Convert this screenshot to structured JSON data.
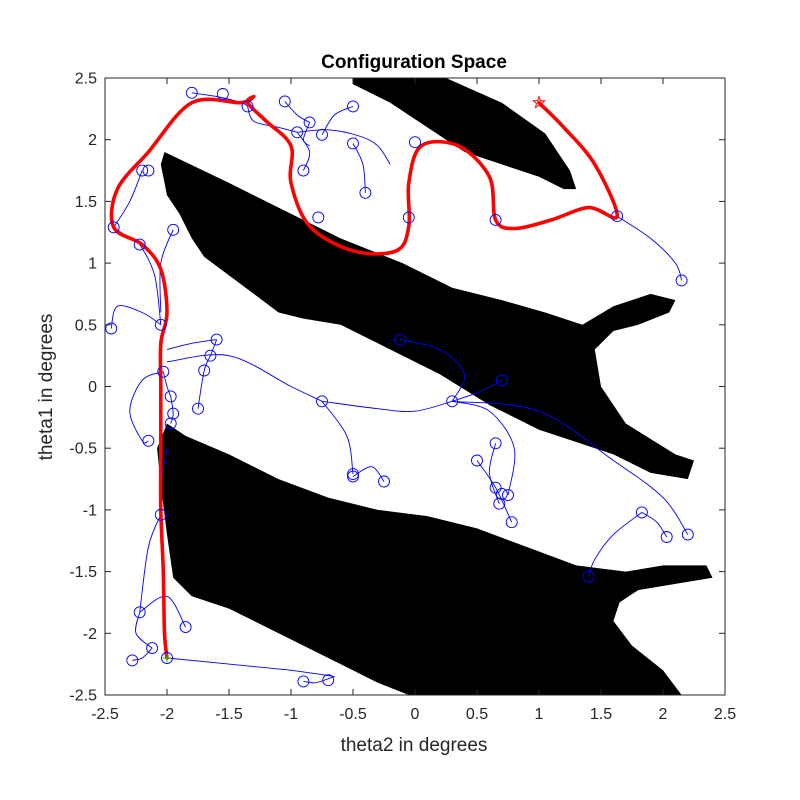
{
  "chart_data": {
    "type": "scatter",
    "title": "Configuration Space",
    "xlabel": "theta2 in degrees",
    "ylabel": "theta1 in degrees",
    "xlim": [
      -2.5,
      2.5
    ],
    "ylim": [
      -2.5,
      2.5
    ],
    "xticks": [
      "-2.5",
      "-2",
      "-1.5",
      "-1",
      "-0.5",
      "0",
      "0.5",
      "1",
      "1.5",
      "2",
      "2.5"
    ],
    "yticks": [
      "-2.5",
      "-2",
      "-1.5",
      "-1",
      "-0.5",
      "0",
      "0.5",
      "1",
      "1.5",
      "2",
      "2.5"
    ],
    "grid": false,
    "colors": {
      "obstacle": "#000000",
      "tree": "#0000ff",
      "path": "#ff0000",
      "goal": "#ff0000",
      "start": "#00cc00"
    },
    "obstacles": [
      {
        "polygon": [
          [
            -0.5,
            2.5
          ],
          [
            0.25,
            2.5
          ],
          [
            0.7,
            2.3
          ],
          [
            1.05,
            2.05
          ],
          [
            1.25,
            1.75
          ],
          [
            1.3,
            1.6
          ],
          [
            1.2,
            1.6
          ],
          [
            1.0,
            1.7
          ],
          [
            0.7,
            1.8
          ],
          [
            0.4,
            1.9
          ],
          [
            0.1,
            2.1
          ],
          [
            -0.2,
            2.3
          ],
          [
            -0.5,
            2.45
          ]
        ]
      },
      {
        "polygon": [
          [
            -2.02,
            1.9
          ],
          [
            -1.5,
            1.65
          ],
          [
            -1.1,
            1.45
          ],
          [
            -0.6,
            1.2
          ],
          [
            -0.1,
            1.0
          ],
          [
            0.3,
            0.8
          ],
          [
            0.7,
            0.7
          ],
          [
            1.05,
            0.6
          ],
          [
            1.35,
            0.5
          ],
          [
            1.6,
            0.65
          ],
          [
            1.9,
            0.75
          ],
          [
            2.1,
            0.7
          ],
          [
            2.05,
            0.6
          ],
          [
            1.8,
            0.5
          ],
          [
            1.6,
            0.45
          ],
          [
            1.45,
            0.3
          ],
          [
            1.5,
            0.0
          ],
          [
            1.7,
            -0.3
          ],
          [
            2.1,
            -0.55
          ],
          [
            2.25,
            -0.6
          ],
          [
            2.2,
            -0.75
          ],
          [
            1.9,
            -0.7
          ],
          [
            1.6,
            -0.55
          ],
          [
            1.3,
            -0.45
          ],
          [
            1.0,
            -0.35
          ],
          [
            0.6,
            -0.15
          ],
          [
            0.2,
            0.1
          ],
          [
            -0.2,
            0.3
          ],
          [
            -0.6,
            0.5
          ],
          [
            -0.9,
            0.55
          ],
          [
            -1.1,
            0.6
          ],
          [
            -1.3,
            0.75
          ],
          [
            -1.5,
            0.9
          ],
          [
            -1.7,
            1.05
          ],
          [
            -1.8,
            1.2
          ],
          [
            -1.9,
            1.4
          ],
          [
            -2.0,
            1.55
          ],
          [
            -2.05,
            1.8
          ]
        ]
      },
      {
        "polygon": [
          [
            -2.0,
            -0.3
          ],
          [
            -1.85,
            -0.4
          ],
          [
            -1.5,
            -0.55
          ],
          [
            -1.1,
            -0.75
          ],
          [
            -0.7,
            -0.9
          ],
          [
            -0.3,
            -1.0
          ],
          [
            0.1,
            -1.05
          ],
          [
            0.5,
            -1.15
          ],
          [
            0.9,
            -1.3
          ],
          [
            1.3,
            -1.45
          ],
          [
            1.7,
            -1.5
          ],
          [
            2.0,
            -1.45
          ],
          [
            2.35,
            -1.45
          ],
          [
            2.4,
            -1.55
          ],
          [
            2.1,
            -1.6
          ],
          [
            1.8,
            -1.65
          ],
          [
            1.65,
            -1.75
          ],
          [
            1.6,
            -1.9
          ],
          [
            1.75,
            -2.1
          ],
          [
            2.0,
            -2.3
          ],
          [
            2.15,
            -2.5
          ],
          [
            -0.05,
            -2.5
          ],
          [
            -0.3,
            -2.4
          ],
          [
            -0.6,
            -2.25
          ],
          [
            -0.9,
            -2.1
          ],
          [
            -1.2,
            -1.95
          ],
          [
            -1.5,
            -1.8
          ],
          [
            -1.8,
            -1.7
          ],
          [
            -1.95,
            -1.55
          ],
          [
            -2.0,
            -1.2
          ],
          [
            -2.05,
            -0.8
          ],
          [
            -2.08,
            -0.5
          ]
        ]
      }
    ],
    "tree_nodes": [
      [
        -1.8,
        2.38
      ],
      [
        -1.55,
        2.37
      ],
      [
        -1.35,
        2.27
      ],
      [
        -1.05,
        2.31
      ],
      [
        -0.85,
        2.14
      ],
      [
        -0.95,
        2.06
      ],
      [
        -0.75,
        2.04
      ],
      [
        -0.5,
        2.27
      ],
      [
        -0.5,
        1.97
      ],
      [
        -0.4,
        1.57
      ],
      [
        -0.9,
        1.75
      ],
      [
        -0.78,
        1.37
      ],
      [
        -0.05,
        1.37
      ],
      [
        0.0,
        1.98
      ],
      [
        0.65,
        1.35
      ],
      [
        1.63,
        1.38
      ],
      [
        2.15,
        0.86
      ],
      [
        -2.43,
        1.29
      ],
      [
        -2.22,
        1.15
      ],
      [
        -2.2,
        1.75
      ],
      [
        -2.15,
        1.75
      ],
      [
        -1.95,
        1.27
      ],
      [
        -2.05,
        0.5
      ],
      [
        -2.45,
        0.47
      ],
      [
        -1.6,
        0.38
      ],
      [
        -1.65,
        0.25
      ],
      [
        -1.7,
        0.13
      ],
      [
        -2.03,
        0.12
      ],
      [
        -1.97,
        -0.08
      ],
      [
        -1.95,
        -0.22
      ],
      [
        -1.97,
        -0.3
      ],
      [
        -1.75,
        -0.18
      ],
      [
        -2.15,
        -0.44
      ],
      [
        -0.75,
        -0.12
      ],
      [
        -0.12,
        0.38
      ],
      [
        0.3,
        -0.12
      ],
      [
        0.7,
        0.05
      ],
      [
        0.65,
        -0.46
      ],
      [
        0.5,
        -0.6
      ],
      [
        0.65,
        -0.82
      ],
      [
        0.7,
        -0.87
      ],
      [
        0.75,
        -0.88
      ],
      [
        0.68,
        -0.95
      ],
      [
        0.78,
        -1.1
      ],
      [
        -0.5,
        -0.71
      ],
      [
        -0.5,
        -0.73
      ],
      [
        -0.25,
        -0.77
      ],
      [
        1.83,
        -1.02
      ],
      [
        2.03,
        -1.22
      ],
      [
        2.2,
        -1.2
      ],
      [
        1.4,
        -1.54
      ],
      [
        -2.05,
        -1.04
      ],
      [
        -2.22,
        -1.83
      ],
      [
        -1.85,
        -1.95
      ],
      [
        -2.12,
        -2.12
      ],
      [
        -2.28,
        -2.22
      ],
      [
        -2.0,
        -2.2
      ],
      [
        -0.9,
        -2.39
      ],
      [
        -0.7,
        -2.38
      ]
    ],
    "tree_edges": [
      [
        [
          -1.8,
          2.38
        ],
        [
          -1.6,
          2.35
        ],
        [
          -1.4,
          2.3
        ],
        [
          -1.35,
          2.27
        ]
      ],
      [
        [
          -1.35,
          2.27
        ],
        [
          -1.3,
          2.15
        ],
        [
          -1.1,
          2.1
        ],
        [
          -0.95,
          2.06
        ]
      ],
      [
        [
          -0.95,
          2.06
        ],
        [
          -0.7,
          2.08
        ],
        [
          -0.45,
          2.03
        ],
        [
          -0.3,
          1.95
        ],
        [
          -0.2,
          1.8
        ]
      ],
      [
        [
          -0.95,
          2.06
        ],
        [
          -0.85,
          1.9
        ],
        [
          -0.9,
          1.75
        ]
      ],
      [
        [
          -0.85,
          2.14
        ],
        [
          -0.9,
          2.0
        ],
        [
          -0.85,
          1.95
        ]
      ],
      [
        [
          -0.5,
          1.97
        ],
        [
          -0.42,
          1.8
        ],
        [
          -0.4,
          1.57
        ]
      ],
      [
        [
          -1.05,
          2.31
        ],
        [
          -0.95,
          2.2
        ],
        [
          -0.85,
          2.14
        ]
      ],
      [
        [
          -0.75,
          2.04
        ],
        [
          -0.65,
          2.2
        ],
        [
          -0.5,
          2.27
        ]
      ],
      [
        [
          1.63,
          1.38
        ],
        [
          1.9,
          1.2
        ],
        [
          2.1,
          1.0
        ],
        [
          2.15,
          0.86
        ]
      ],
      [
        [
          -2.43,
          1.29
        ],
        [
          -2.3,
          1.2
        ],
        [
          -2.22,
          1.15
        ],
        [
          -2.1,
          0.9
        ],
        [
          -2.05,
          0.5
        ]
      ],
      [
        [
          -2.2,
          1.75
        ],
        [
          -2.3,
          1.5
        ],
        [
          -2.43,
          1.29
        ]
      ],
      [
        [
          -1.95,
          1.27
        ],
        [
          -2.05,
          1.0
        ],
        [
          -2.05,
          0.6
        ]
      ],
      [
        [
          -2.05,
          0.5
        ],
        [
          -2.2,
          0.6
        ],
        [
          -2.4,
          0.65
        ],
        [
          -2.45,
          0.47
        ]
      ],
      [
        [
          -2.0,
          0.3
        ],
        [
          -1.8,
          0.35
        ],
        [
          -1.6,
          0.38
        ]
      ],
      [
        [
          -1.6,
          0.38
        ],
        [
          -1.65,
          0.25
        ],
        [
          -1.7,
          0.13
        ],
        [
          -1.75,
          -0.18
        ]
      ],
      [
        [
          -2.03,
          0.12
        ],
        [
          -2.0,
          0.0
        ],
        [
          -1.97,
          -0.08
        ]
      ],
      [
        [
          -1.97,
          -0.08
        ],
        [
          -1.95,
          -0.22
        ],
        [
          -1.97,
          -0.3
        ]
      ],
      [
        [
          -2.03,
          0.12
        ],
        [
          -2.2,
          0.05
        ],
        [
          -2.3,
          -0.2
        ],
        [
          -2.2,
          -0.44
        ],
        [
          -2.15,
          -0.44
        ]
      ],
      [
        [
          -2.0,
          0.2
        ],
        [
          -1.5,
          0.25
        ],
        [
          -1.0,
          0.0
        ],
        [
          -0.75,
          -0.12
        ]
      ],
      [
        [
          -0.75,
          -0.12
        ],
        [
          -0.3,
          -0.18
        ],
        [
          0.0,
          -0.2
        ],
        [
          0.3,
          -0.12
        ]
      ],
      [
        [
          -0.12,
          0.38
        ],
        [
          0.2,
          0.3
        ],
        [
          0.4,
          0.1
        ],
        [
          0.3,
          -0.12
        ]
      ],
      [
        [
          0.3,
          -0.12
        ],
        [
          0.5,
          -0.05
        ],
        [
          0.7,
          0.05
        ]
      ],
      [
        [
          0.3,
          -0.12
        ],
        [
          0.6,
          -0.2
        ],
        [
          0.8,
          -0.5
        ],
        [
          0.75,
          -0.88
        ]
      ],
      [
        [
          0.3,
          -0.12
        ],
        [
          1.0,
          -0.2
        ],
        [
          1.6,
          -0.6
        ],
        [
          2.0,
          -0.9
        ],
        [
          2.2,
          -1.2
        ]
      ],
      [
        [
          0.65,
          -0.46
        ],
        [
          0.6,
          -0.7
        ],
        [
          0.68,
          -0.95
        ]
      ],
      [
        [
          0.5,
          -0.6
        ],
        [
          0.65,
          -0.82
        ],
        [
          0.78,
          -1.1
        ]
      ],
      [
        [
          -0.75,
          -0.12
        ],
        [
          -0.55,
          -0.4
        ],
        [
          -0.5,
          -0.71
        ]
      ],
      [
        [
          -0.5,
          -0.73
        ],
        [
          -0.35,
          -0.65
        ],
        [
          -0.25,
          -0.77
        ]
      ],
      [
        [
          1.83,
          -1.02
        ],
        [
          1.95,
          -1.1
        ],
        [
          2.03,
          -1.22
        ]
      ],
      [
        [
          1.83,
          -1.02
        ],
        [
          1.6,
          -1.2
        ],
        [
          1.45,
          -1.4
        ],
        [
          1.4,
          -1.54
        ]
      ],
      [
        [
          -2.0,
          -0.5
        ],
        [
          -2.05,
          -0.8
        ],
        [
          -2.05,
          -1.04
        ]
      ],
      [
        [
          -2.05,
          -1.04
        ],
        [
          -2.15,
          -1.3
        ],
        [
          -2.22,
          -1.83
        ]
      ],
      [
        [
          -2.22,
          -1.83
        ],
        [
          -2.0,
          -1.7
        ],
        [
          -1.85,
          -1.95
        ]
      ],
      [
        [
          -2.22,
          -1.83
        ],
        [
          -2.25,
          -2.0
        ],
        [
          -2.12,
          -2.12
        ]
      ],
      [
        [
          -2.12,
          -2.12
        ],
        [
          -2.2,
          -2.2
        ],
        [
          -2.28,
          -2.22
        ]
      ],
      [
        [
          -2.0,
          -2.2
        ],
        [
          -1.5,
          -2.25
        ],
        [
          -1.0,
          -2.3
        ],
        [
          -0.65,
          -2.35
        ]
      ],
      [
        [
          -0.65,
          -2.35
        ],
        [
          -0.8,
          -2.4
        ],
        [
          -0.9,
          -2.39
        ]
      ]
    ],
    "path": [
      [
        1.0,
        2.3
      ],
      [
        1.2,
        2.1
      ],
      [
        1.45,
        1.8
      ],
      [
        1.63,
        1.38
      ],
      [
        1.4,
        1.45
      ],
      [
        1.1,
        1.35
      ],
      [
        0.8,
        1.28
      ],
      [
        0.65,
        1.35
      ],
      [
        0.6,
        1.7
      ],
      [
        0.35,
        1.95
      ],
      [
        0.05,
        1.95
      ],
      [
        -0.05,
        1.65
      ],
      [
        -0.05,
        1.3
      ],
      [
        -0.15,
        1.1
      ],
      [
        -0.5,
        1.1
      ],
      [
        -0.85,
        1.3
      ],
      [
        -1.0,
        1.65
      ],
      [
        -1.0,
        1.95
      ],
      [
        -1.2,
        2.15
      ],
      [
        -1.35,
        2.3
      ],
      [
        -1.3,
        2.35
      ],
      [
        -1.4,
        2.3
      ],
      [
        -1.8,
        2.3
      ],
      [
        -2.15,
        1.9
      ],
      [
        -2.4,
        1.6
      ],
      [
        -2.43,
        1.29
      ],
      [
        -2.2,
        1.15
      ],
      [
        -2.05,
        0.95
      ],
      [
        -2.0,
        0.6
      ],
      [
        -2.05,
        0.35
      ],
      [
        -2.05,
        0.0
      ],
      [
        -2.05,
        -0.5
      ],
      [
        -2.05,
        -1.0
      ],
      [
        -2.03,
        -1.5
      ],
      [
        -2.02,
        -2.0
      ],
      [
        -2.0,
        -2.2
      ]
    ],
    "goal": [
      1.0,
      2.3
    ],
    "start": [
      -2.0,
      -2.2
    ]
  }
}
